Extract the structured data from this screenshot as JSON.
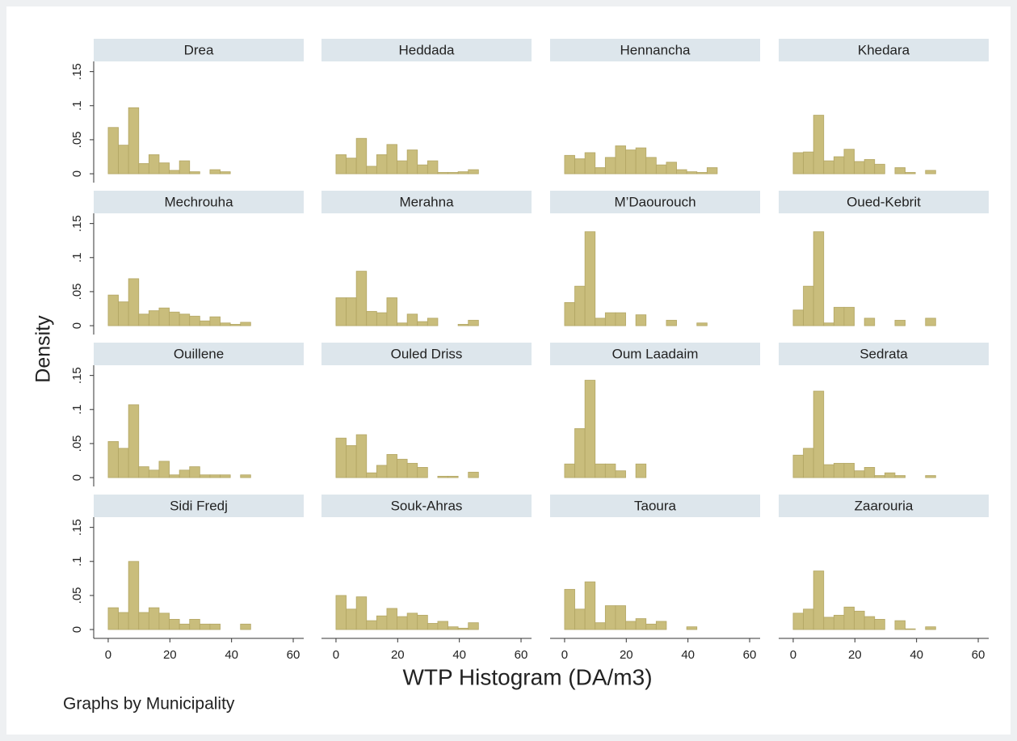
{
  "figure": {
    "ylabel": "Density",
    "xlabel": "WTP Histogram (DA/m3)",
    "note": "Graphs by Municipality"
  },
  "axes": {
    "xlim": [
      -4.7,
      63.4
    ],
    "ylim": [
      -0.013,
      0.165
    ],
    "xticks": [
      0,
      20,
      40,
      60
    ],
    "yticks": [
      0,
      {
        "value": 0.05,
        "label": ".05"
      },
      {
        "value": 0.1,
        "label": ".1"
      },
      {
        "value": 0.15,
        "label": ".15"
      }
    ],
    "color": "#c9bd7c"
  },
  "chart_data": [
    {
      "type": "histogram",
      "title": "Drea",
      "bins": [
        0,
        3.3,
        6.6,
        9.9,
        13.2,
        16.5,
        19.8,
        23.1,
        26.4,
        29.7,
        33,
        36.3,
        39.6,
        42.9,
        46.2,
        49.5
      ],
      "values": [
        0.068,
        0.042,
        0.097,
        0.015,
        0.028,
        0.016,
        0.005,
        0.019,
        0.003,
        0,
        0.006,
        0.003,
        0,
        0,
        0
      ]
    },
    {
      "type": "histogram",
      "title": "Heddada",
      "bins": [
        0,
        3.3,
        6.6,
        9.9,
        13.2,
        16.5,
        19.8,
        23.1,
        26.4,
        29.7,
        33,
        36.3,
        39.6,
        42.9,
        46.2,
        49.5
      ],
      "values": [
        0.028,
        0.023,
        0.052,
        0.011,
        0.028,
        0.043,
        0.019,
        0.035,
        0.013,
        0.019,
        0.002,
        0.002,
        0.003,
        0.006,
        0
      ]
    },
    {
      "type": "histogram",
      "title": "Hennancha",
      "bins": [
        0,
        3.3,
        6.6,
        9.9,
        13.2,
        16.5,
        19.8,
        23.1,
        26.4,
        29.7,
        33,
        36.3,
        39.6,
        42.9,
        46.2,
        49.5
      ],
      "values": [
        0.027,
        0.022,
        0.031,
        0.009,
        0.024,
        0.041,
        0.035,
        0.038,
        0.024,
        0.013,
        0.017,
        0.006,
        0.003,
        0.002,
        0.009
      ]
    },
    {
      "type": "histogram",
      "title": "Khedara",
      "bins": [
        0,
        3.3,
        6.6,
        9.9,
        13.2,
        16.5,
        19.8,
        23.1,
        26.4,
        29.7,
        33,
        36.3,
        39.6,
        42.9,
        46.2,
        49.5
      ],
      "values": [
        0.031,
        0.032,
        0.086,
        0.019,
        0.025,
        0.036,
        0.018,
        0.021,
        0.014,
        0,
        0.009,
        0.002,
        0,
        0.005,
        0
      ]
    },
    {
      "type": "histogram",
      "title": "Mechrouha",
      "bins": [
        0,
        3.3,
        6.6,
        9.9,
        13.2,
        16.5,
        19.8,
        23.1,
        26.4,
        29.7,
        33,
        36.3,
        39.6,
        42.9,
        46.2,
        49.5
      ],
      "values": [
        0.045,
        0.035,
        0.069,
        0.017,
        0.022,
        0.026,
        0.02,
        0.017,
        0.014,
        0.007,
        0.013,
        0.004,
        0.002,
        0.005,
        0
      ]
    },
    {
      "type": "histogram",
      "title": "Merahna",
      "bins": [
        0,
        3.3,
        6.6,
        9.9,
        13.2,
        16.5,
        19.8,
        23.1,
        26.4,
        29.7,
        33,
        36.3,
        39.6,
        42.9,
        46.2,
        49.5
      ],
      "values": [
        0.041,
        0.041,
        0.08,
        0.021,
        0.019,
        0.041,
        0.004,
        0.017,
        0.006,
        0.011,
        0,
        0,
        0.002,
        0.008,
        0
      ]
    },
    {
      "type": "histogram",
      "title": "M’Daourouch",
      "bins": [
        0,
        3.3,
        6.6,
        9.9,
        13.2,
        16.5,
        19.8,
        23.1,
        26.4,
        29.7,
        33,
        36.3,
        39.6,
        42.9,
        46.2,
        49.5
      ],
      "values": [
        0.034,
        0.058,
        0.138,
        0.011,
        0.019,
        0.019,
        0,
        0.016,
        0,
        0,
        0.008,
        0,
        0,
        0.004,
        0
      ]
    },
    {
      "type": "histogram",
      "title": "Oued-Kebrit",
      "bins": [
        0,
        3.3,
        6.6,
        9.9,
        13.2,
        16.5,
        19.8,
        23.1,
        26.4,
        29.7,
        33,
        36.3,
        39.6,
        42.9,
        46.2,
        49.5
      ],
      "values": [
        0.023,
        0.058,
        0.138,
        0.004,
        0.027,
        0.027,
        0,
        0.011,
        0,
        0,
        0.008,
        0,
        0,
        0.011,
        0
      ]
    },
    {
      "type": "histogram",
      "title": "Ouillene",
      "bins": [
        0,
        3.3,
        6.6,
        9.9,
        13.2,
        16.5,
        19.8,
        23.1,
        26.4,
        29.7,
        33,
        36.3,
        39.6,
        42.9,
        46.2,
        49.5
      ],
      "values": [
        0.053,
        0.043,
        0.107,
        0.016,
        0.011,
        0.024,
        0.004,
        0.011,
        0.016,
        0.004,
        0.004,
        0.004,
        0,
        0.004,
        0
      ]
    },
    {
      "type": "histogram",
      "title": "Ouled Driss",
      "bins": [
        0,
        3.3,
        6.6,
        9.9,
        13.2,
        16.5,
        19.8,
        23.1,
        26.4,
        29.7,
        33,
        36.3,
        39.6,
        42.9,
        46.2,
        49.5
      ],
      "values": [
        0.058,
        0.047,
        0.063,
        0.007,
        0.018,
        0.034,
        0.027,
        0.021,
        0.015,
        0,
        0.002,
        0.002,
        0,
        0.008,
        0
      ]
    },
    {
      "type": "histogram",
      "title": "Oum Laadaim",
      "bins": [
        0,
        3.3,
        6.6,
        9.9,
        13.2,
        16.5,
        19.8,
        23.1,
        26.4,
        29.7,
        33,
        36.3,
        39.6,
        42.9,
        46.2,
        49.5
      ],
      "values": [
        0.02,
        0.072,
        0.143,
        0.02,
        0.02,
        0.01,
        0,
        0.02,
        0,
        0,
        0,
        0,
        0,
        0,
        0
      ]
    },
    {
      "type": "histogram",
      "title": "Sedrata",
      "bins": [
        0,
        3.3,
        6.6,
        9.9,
        13.2,
        16.5,
        19.8,
        23.1,
        26.4,
        29.7,
        33,
        36.3,
        39.6,
        42.9,
        46.2,
        49.5
      ],
      "values": [
        0.033,
        0.043,
        0.127,
        0.019,
        0.021,
        0.021,
        0.01,
        0.015,
        0.003,
        0.007,
        0.003,
        0,
        0,
        0.003,
        0
      ]
    },
    {
      "type": "histogram",
      "title": "Sidi Fredj",
      "bins": [
        0,
        3.3,
        6.6,
        9.9,
        13.2,
        16.5,
        19.8,
        23.1,
        26.4,
        29.7,
        33,
        36.3,
        39.6,
        42.9,
        46.2,
        49.5
      ],
      "values": [
        0.032,
        0.025,
        0.1,
        0.025,
        0.032,
        0.024,
        0.015,
        0.008,
        0.015,
        0.008,
        0.008,
        0,
        0,
        0.008,
        0
      ]
    },
    {
      "type": "histogram",
      "title": "Souk-Ahras",
      "bins": [
        0,
        3.3,
        6.6,
        9.9,
        13.2,
        16.5,
        19.8,
        23.1,
        26.4,
        29.7,
        33,
        36.3,
        39.6,
        42.9,
        46.2,
        49.5
      ],
      "values": [
        0.05,
        0.03,
        0.048,
        0.013,
        0.02,
        0.031,
        0.019,
        0.024,
        0.021,
        0.009,
        0.012,
        0.004,
        0.002,
        0.01,
        0
      ]
    },
    {
      "type": "histogram",
      "title": "Taoura",
      "bins": [
        0,
        3.3,
        6.6,
        9.9,
        13.2,
        16.5,
        19.8,
        23.1,
        26.4,
        29.7,
        33,
        36.3,
        39.6,
        42.9,
        46.2,
        49.5
      ],
      "values": [
        0.059,
        0.03,
        0.07,
        0.01,
        0.035,
        0.035,
        0.012,
        0.016,
        0.008,
        0.012,
        0,
        0,
        0.004,
        0,
        0
      ]
    },
    {
      "type": "histogram",
      "title": "Zaarouria",
      "bins": [
        0,
        3.3,
        6.6,
        9.9,
        13.2,
        16.5,
        19.8,
        23.1,
        26.4,
        29.7,
        33,
        36.3,
        39.6,
        42.9,
        46.2,
        49.5
      ],
      "values": [
        0.024,
        0.03,
        0.086,
        0.018,
        0.021,
        0.033,
        0.027,
        0.019,
        0.015,
        0,
        0.013,
        0.001,
        0,
        0.004,
        0
      ]
    }
  ]
}
